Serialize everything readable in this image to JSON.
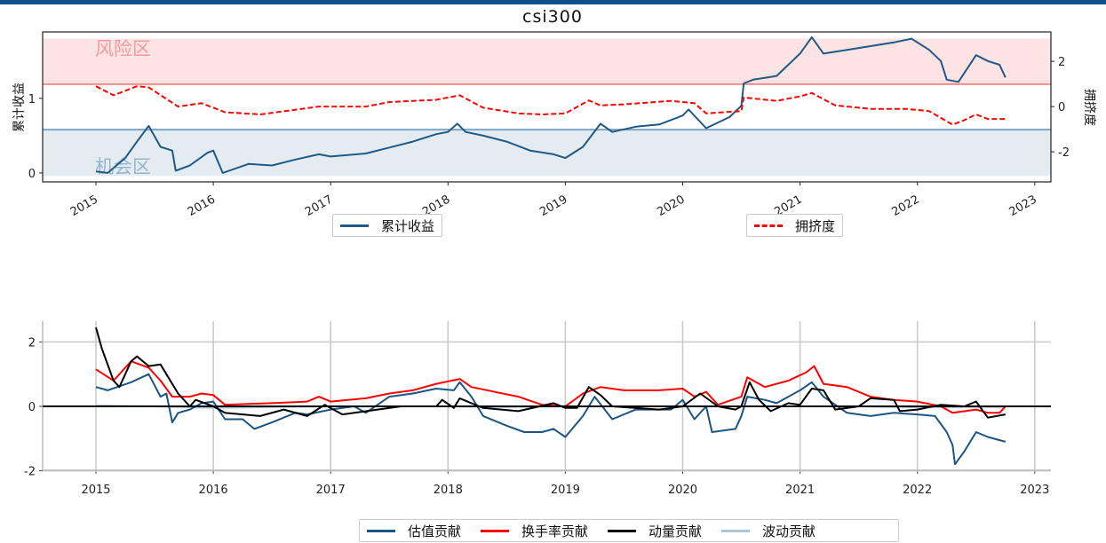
{
  "chart_data": [
    {
      "type": "line",
      "title": "csi300",
      "ylabel": "累计收益",
      "ylabel_right": "拥挤度",
      "xlim": [
        2014.7,
        2023.15
      ],
      "ylim": [
        -0.12,
        1.89
      ],
      "ylim_right": [
        -3.33,
        3.3
      ],
      "xticks": [
        "2015",
        "2016",
        "2017",
        "2018",
        "2019",
        "2020",
        "2021",
        "2022",
        "2023"
      ],
      "yticks": [
        "0",
        "1"
      ],
      "yticks_right": [
        "-2",
        "0",
        "2"
      ],
      "zones": [
        {
          "label": "风险区",
          "range": [
            1.19,
            1.8
          ],
          "color": "#fde3e4",
          "edge": "#ff8a8a",
          "text_color": "#f49aa0"
        },
        {
          "label": "机会区",
          "range": [
            -0.04,
            0.58
          ],
          "color": "#e4ecf1",
          "edge": "#7fa5c2",
          "text_color": "#98b4ca"
        }
      ],
      "series": [
        {
          "name": "累计收益",
          "axis": "left",
          "color": "#1f5a86",
          "style": "solid",
          "x": [
            2015.0,
            2015.1,
            2015.25,
            2015.35,
            2015.45,
            2015.55,
            2015.65,
            2015.68,
            2015.8,
            2015.95,
            2016.0,
            2016.08,
            2016.3,
            2016.5,
            2016.7,
            2016.9,
            2017.0,
            2017.3,
            2017.5,
            2017.7,
            2017.9,
            2018.0,
            2018.08,
            2018.15,
            2018.3,
            2018.5,
            2018.7,
            2018.9,
            2019.0,
            2019.15,
            2019.3,
            2019.4,
            2019.6,
            2019.8,
            2020.0,
            2020.05,
            2020.2,
            2020.4,
            2020.5,
            2020.52,
            2020.6,
            2020.8,
            2020.9,
            2021.0,
            2021.1,
            2021.2,
            2021.4,
            2021.6,
            2021.8,
            2021.95,
            2022.1,
            2022.2,
            2022.25,
            2022.35,
            2022.5,
            2022.6,
            2022.7,
            2022.75
          ],
          "y": [
            0.02,
            0.0,
            0.2,
            0.42,
            0.63,
            0.35,
            0.3,
            0.03,
            0.1,
            0.27,
            0.3,
            0.0,
            0.12,
            0.1,
            0.18,
            0.25,
            0.22,
            0.26,
            0.34,
            0.42,
            0.52,
            0.55,
            0.66,
            0.55,
            0.5,
            0.42,
            0.3,
            0.25,
            0.2,
            0.35,
            0.66,
            0.55,
            0.62,
            0.65,
            0.77,
            0.85,
            0.6,
            0.75,
            0.9,
            1.2,
            1.25,
            1.3,
            1.45,
            1.6,
            1.82,
            1.6,
            1.65,
            1.7,
            1.75,
            1.8,
            1.65,
            1.5,
            1.25,
            1.22,
            1.58,
            1.5,
            1.45,
            1.28
          ]
        },
        {
          "name": "拥挤度",
          "axis": "right",
          "color": "#ff0000",
          "style": "dashed",
          "x": [
            2015.0,
            2015.15,
            2015.35,
            2015.45,
            2015.7,
            2015.9,
            2016.1,
            2016.4,
            2016.9,
            2017.3,
            2017.5,
            2017.9,
            2018.1,
            2018.3,
            2018.6,
            2018.8,
            2019.0,
            2019.2,
            2019.3,
            2019.5,
            2019.9,
            2020.1,
            2020.2,
            2020.5,
            2020.52,
            2020.8,
            2021.0,
            2021.1,
            2021.3,
            2021.6,
            2021.9,
            2022.1,
            2022.2,
            2022.3,
            2022.4,
            2022.5,
            2022.6,
            2022.75
          ],
          "y": [
            0.9,
            0.5,
            0.9,
            0.85,
            0.0,
            0.15,
            -0.25,
            -0.35,
            0.0,
            0.0,
            0.2,
            0.3,
            0.5,
            -0.05,
            -0.3,
            -0.35,
            -0.3,
            0.27,
            0.05,
            0.1,
            0.25,
            0.15,
            -0.3,
            -0.2,
            0.4,
            0.25,
            0.45,
            0.6,
            0.05,
            -0.1,
            -0.1,
            -0.2,
            -0.5,
            -0.8,
            -0.6,
            -0.35,
            -0.55,
            -0.55
          ]
        }
      ]
    },
    {
      "type": "line",
      "title": "",
      "xlim": [
        2014.7,
        2023.15
      ],
      "ylim": [
        -2.03,
        2.65
      ],
      "xticks": [
        "2015",
        "2016",
        "2017",
        "2018",
        "2019",
        "2020",
        "2021",
        "2022",
        "2023"
      ],
      "yticks": [
        "-2",
        "0",
        "2"
      ],
      "grid": true,
      "legend_position": "bottom-center",
      "series": [
        {
          "name": "估值贡献",
          "color": "#1b5583",
          "x": [
            2015.0,
            2015.1,
            2015.3,
            2015.45,
            2015.55,
            2015.6,
            2015.65,
            2015.7,
            2015.8,
            2015.9,
            2016.0,
            2016.1,
            2016.25,
            2016.35,
            2016.5,
            2016.7,
            2016.8,
            2017.0,
            2017.2,
            2017.3,
            2017.5,
            2017.7,
            2017.9,
            2018.05,
            2018.1,
            2018.2,
            2018.3,
            2018.5,
            2018.65,
            2018.8,
            2018.9,
            2019.0,
            2019.15,
            2019.25,
            2019.4,
            2019.6,
            2019.9,
            2020.0,
            2020.1,
            2020.2,
            2020.25,
            2020.45,
            2020.5,
            2020.55,
            2020.7,
            2020.8,
            2021.0,
            2021.1,
            2021.2,
            2021.4,
            2021.6,
            2021.8,
            2022.0,
            2022.15,
            2022.25,
            2022.3,
            2022.32,
            2022.4,
            2022.5,
            2022.6,
            2022.75
          ],
          "y": [
            0.6,
            0.5,
            0.75,
            1.0,
            0.3,
            0.4,
            -0.5,
            -0.2,
            -0.1,
            0.1,
            0.15,
            -0.4,
            -0.4,
            -0.7,
            -0.5,
            -0.2,
            -0.25,
            -0.1,
            0.0,
            -0.2,
            0.3,
            0.4,
            0.55,
            0.5,
            0.75,
            0.3,
            -0.3,
            -0.6,
            -0.8,
            -0.8,
            -0.7,
            -0.95,
            -0.3,
            0.3,
            -0.4,
            -0.1,
            -0.1,
            0.2,
            -0.4,
            0.0,
            -0.8,
            -0.7,
            -0.3,
            0.3,
            0.2,
            0.1,
            0.5,
            0.75,
            0.3,
            -0.2,
            -0.3,
            -0.2,
            -0.25,
            -0.3,
            -0.8,
            -1.2,
            -1.8,
            -1.4,
            -0.8,
            -0.95,
            -1.1
          ]
        },
        {
          "name": "换手率贡献",
          "color": "#ff0000",
          "x": [
            2015.0,
            2015.15,
            2015.3,
            2015.45,
            2015.55,
            2015.65,
            2015.8,
            2015.9,
            2016.0,
            2016.1,
            2016.5,
            2016.8,
            2016.9,
            2017.0,
            2017.3,
            2017.5,
            2017.7,
            2017.9,
            2018.1,
            2018.2,
            2018.4,
            2018.6,
            2018.8,
            2019.0,
            2019.15,
            2019.3,
            2019.5,
            2019.8,
            2020.0,
            2020.1,
            2020.2,
            2020.3,
            2020.5,
            2020.55,
            2020.7,
            2020.9,
            2021.05,
            2021.12,
            2021.2,
            2021.4,
            2021.6,
            2021.8,
            2022.0,
            2022.2,
            2022.3,
            2022.5,
            2022.6,
            2022.7,
            2022.75
          ],
          "y": [
            1.15,
            0.8,
            1.4,
            1.2,
            0.8,
            0.3,
            0.3,
            0.4,
            0.35,
            0.05,
            0.1,
            0.15,
            0.3,
            0.15,
            0.25,
            0.4,
            0.5,
            0.7,
            0.85,
            0.6,
            0.45,
            0.3,
            0.05,
            0.0,
            0.4,
            0.6,
            0.5,
            0.5,
            0.55,
            0.3,
            0.45,
            0.05,
            0.3,
            0.9,
            0.6,
            0.8,
            1.05,
            1.25,
            0.7,
            0.6,
            0.3,
            0.2,
            0.15,
            0.0,
            -0.2,
            -0.1,
            -0.2,
            -0.2,
            0.0
          ]
        },
        {
          "name": "动量贡献",
          "color": "#000000",
          "x": [
            2015.0,
            2015.05,
            2015.15,
            2015.2,
            2015.3,
            2015.35,
            2015.45,
            2015.55,
            2015.6,
            2015.7,
            2015.8,
            2015.85,
            2016.0,
            2016.1,
            2016.4,
            2016.6,
            2016.8,
            2016.95,
            2017.1,
            2017.4,
            2017.6,
            2017.9,
            2017.95,
            2018.05,
            2018.1,
            2018.2,
            2018.3,
            2018.6,
            2018.9,
            2019.0,
            2019.1,
            2019.2,
            2019.3,
            2019.4,
            2019.8,
            2020.0,
            2020.15,
            2020.3,
            2020.45,
            2020.5,
            2020.57,
            2020.65,
            2020.75,
            2020.9,
            2021.0,
            2021.1,
            2021.2,
            2021.3,
            2021.5,
            2021.6,
            2021.8,
            2021.85,
            2022.0,
            2022.2,
            2022.4,
            2022.5,
            2022.6,
            2022.75
          ],
          "y": [
            2.45,
            1.8,
            0.8,
            0.6,
            1.4,
            1.55,
            1.25,
            1.3,
            1.0,
            0.4,
            0.0,
            0.2,
            0.0,
            -0.2,
            -0.3,
            -0.1,
            -0.3,
            0.05,
            -0.25,
            -0.1,
            0.0,
            0.0,
            0.2,
            -0.05,
            0.25,
            0.1,
            -0.05,
            -0.15,
            0.1,
            -0.05,
            -0.05,
            0.6,
            0.35,
            0.0,
            -0.1,
            0.0,
            0.4,
            0.0,
            -0.1,
            0.0,
            0.75,
            0.2,
            -0.15,
            0.1,
            0.05,
            0.55,
            0.5,
            -0.1,
            0.0,
            0.25,
            0.2,
            -0.15,
            -0.1,
            0.05,
            0.0,
            0.15,
            -0.35,
            -0.25
          ]
        },
        {
          "name": "波动贡献",
          "color": "#aac8dc",
          "x": [
            2015.0,
            2015.5,
            2016.0,
            2016.5,
            2017.0,
            2017.5,
            2018.0,
            2018.5,
            2019.0,
            2019.5,
            2020.0,
            2020.5,
            2021.0,
            2021.5,
            2022.0,
            2022.5,
            2022.75
          ],
          "y": [
            0.03,
            0.0,
            -0.05,
            -0.02,
            0.0,
            0.0,
            0.0,
            -0.02,
            0.0,
            0.0,
            0.0,
            0.0,
            0.0,
            0.0,
            -0.03,
            -0.02,
            -0.02
          ]
        }
      ]
    }
  ]
}
